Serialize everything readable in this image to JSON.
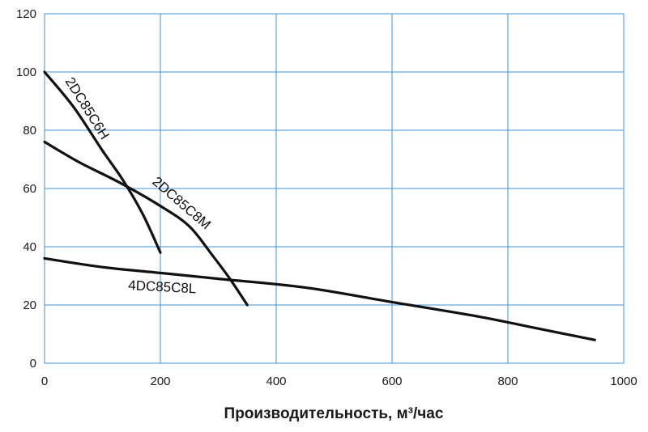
{
  "chart_data": {
    "type": "line",
    "title": "",
    "xlabel": "Производительность, м³/час",
    "ylabel": "",
    "xlim": [
      0,
      1000
    ],
    "ylim": [
      0,
      120
    ],
    "xticks": [
      "0",
      "200",
      "400",
      "600",
      "800",
      "1000"
    ],
    "yticks": [
      "0",
      "20",
      "40",
      "60",
      "80",
      "100",
      "120"
    ],
    "grid": true,
    "legend": "none",
    "colors": {
      "line": "#111111",
      "grid": "#4a90c8"
    },
    "series": [
      {
        "name": "2DC85C6H",
        "points": [
          [
            0,
            100
          ],
          [
            50,
            88
          ],
          [
            100,
            73
          ],
          [
            135,
            63
          ],
          [
            170,
            51
          ],
          [
            200,
            38
          ]
        ]
      },
      {
        "name": "2DC85C8M",
        "points": [
          [
            0,
            76
          ],
          [
            60,
            69
          ],
          [
            130,
            62
          ],
          [
            200,
            54
          ],
          [
            250,
            47
          ],
          [
            290,
            37
          ],
          [
            320,
            29
          ],
          [
            350,
            20
          ]
        ]
      },
      {
        "name": "4DC85C8L",
        "points": [
          [
            0,
            36
          ],
          [
            100,
            33
          ],
          [
            200,
            31
          ],
          [
            300,
            29
          ],
          [
            450,
            26
          ],
          [
            600,
            21
          ],
          [
            750,
            16
          ],
          [
            850,
            12
          ],
          [
            950,
            8
          ]
        ]
      }
    ]
  }
}
